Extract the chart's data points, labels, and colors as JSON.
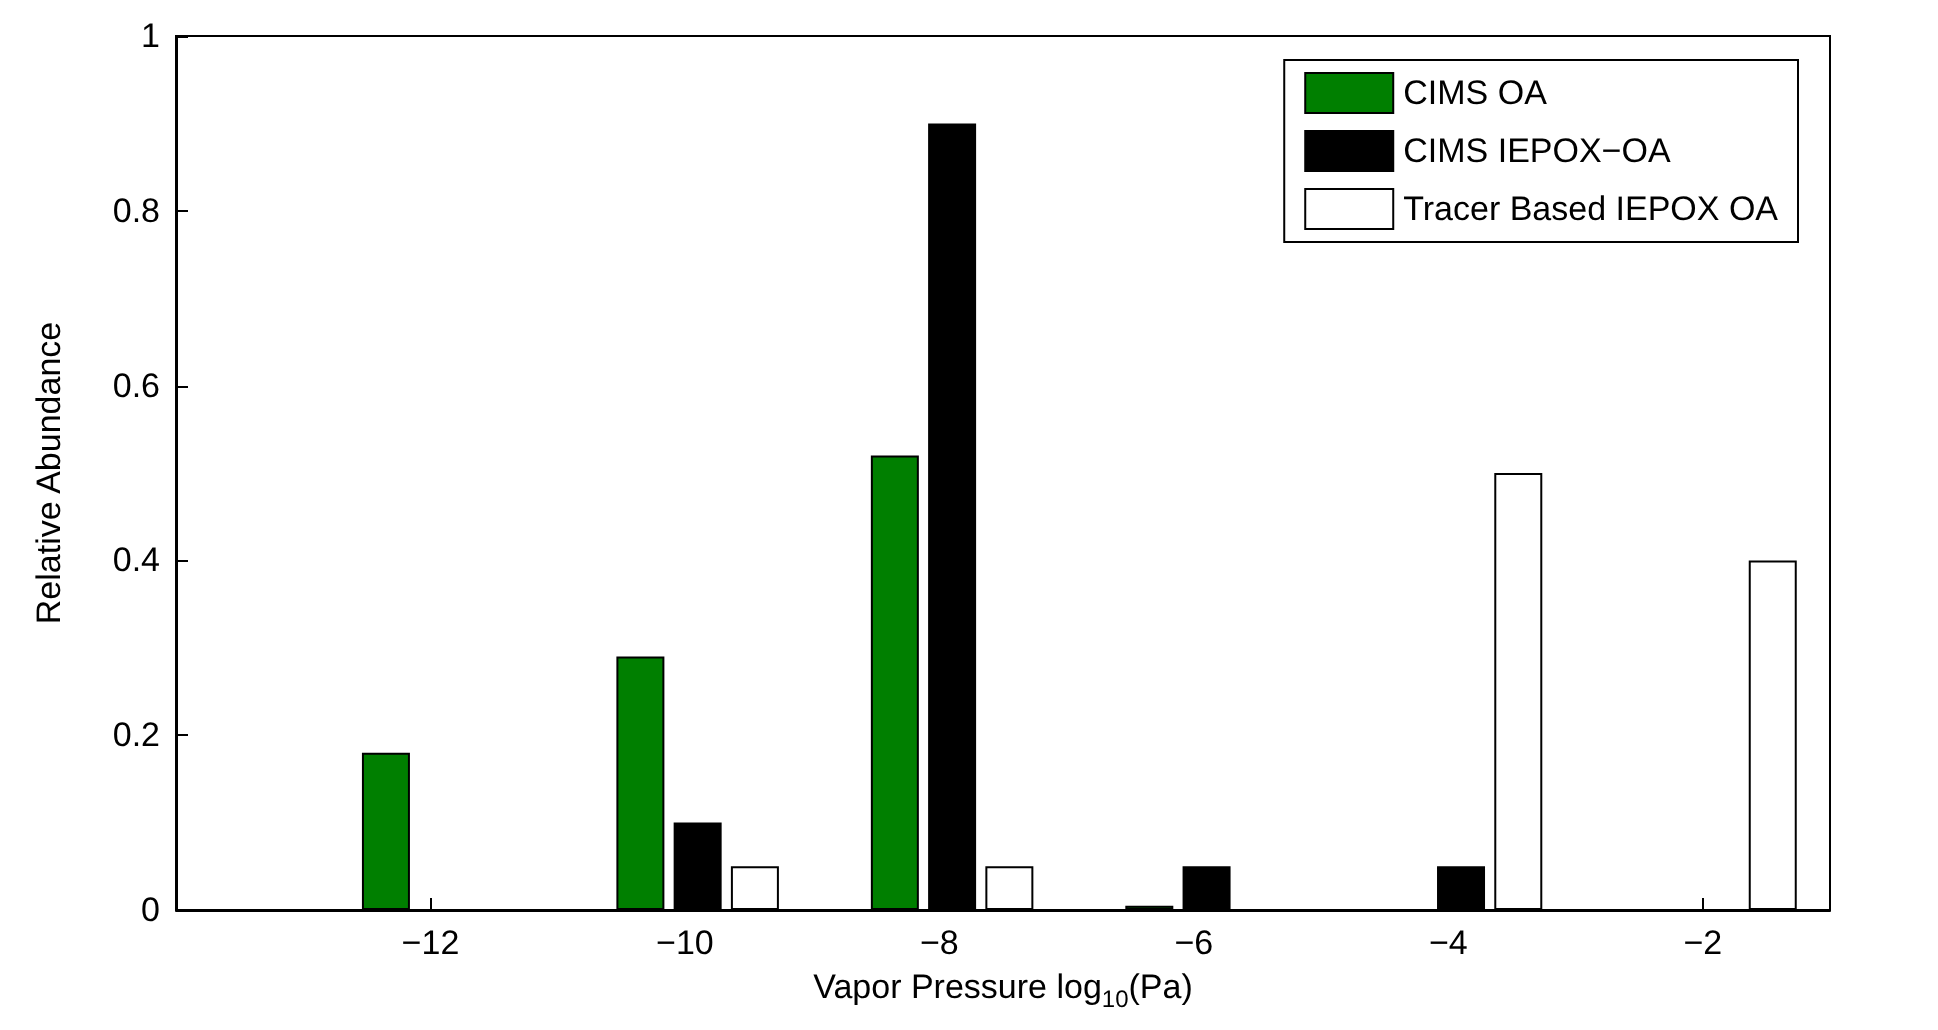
{
  "chart_data": {
    "type": "bar",
    "xlabel": "Vapor Pressure log$_{10}$(Pa)",
    "ylabel": "Relative Abundance",
    "series": [
      {
        "name": "CIMS OA",
        "color": "#007f00",
        "x": [
          -12.35,
          -10.35,
          -8.35,
          -6.35,
          -4.35,
          -2.35
        ],
        "values": [
          0.18,
          0.29,
          0.52,
          0.005,
          0,
          0
        ]
      },
      {
        "name": "CIMS IEPOX−OA",
        "color": "#000000",
        "x": [
          -11.9,
          -9.9,
          -7.9,
          -5.9,
          -3.9,
          -1.9
        ],
        "values": [
          0,
          0.1,
          0.9,
          0.05,
          0.05,
          0
        ]
      },
      {
        "name": "Tracer Based IEPOX OA",
        "color": "#ffffff",
        "x": [
          -11.45,
          -9.45,
          -7.45,
          -5.45,
          -3.45,
          -1.45
        ],
        "values": [
          0,
          0.05,
          0.05,
          0,
          0.5,
          0.4
        ]
      }
    ],
    "xlim": [
      -14,
      -1
    ],
    "xticks": [
      -12,
      -10,
      -8,
      -6,
      -4,
      -2
    ],
    "ylim": [
      0,
      1
    ],
    "yticks": [
      0,
      0.2,
      0.4,
      0.6,
      0.8,
      1
    ],
    "grid": false,
    "legend": "top right"
  }
}
